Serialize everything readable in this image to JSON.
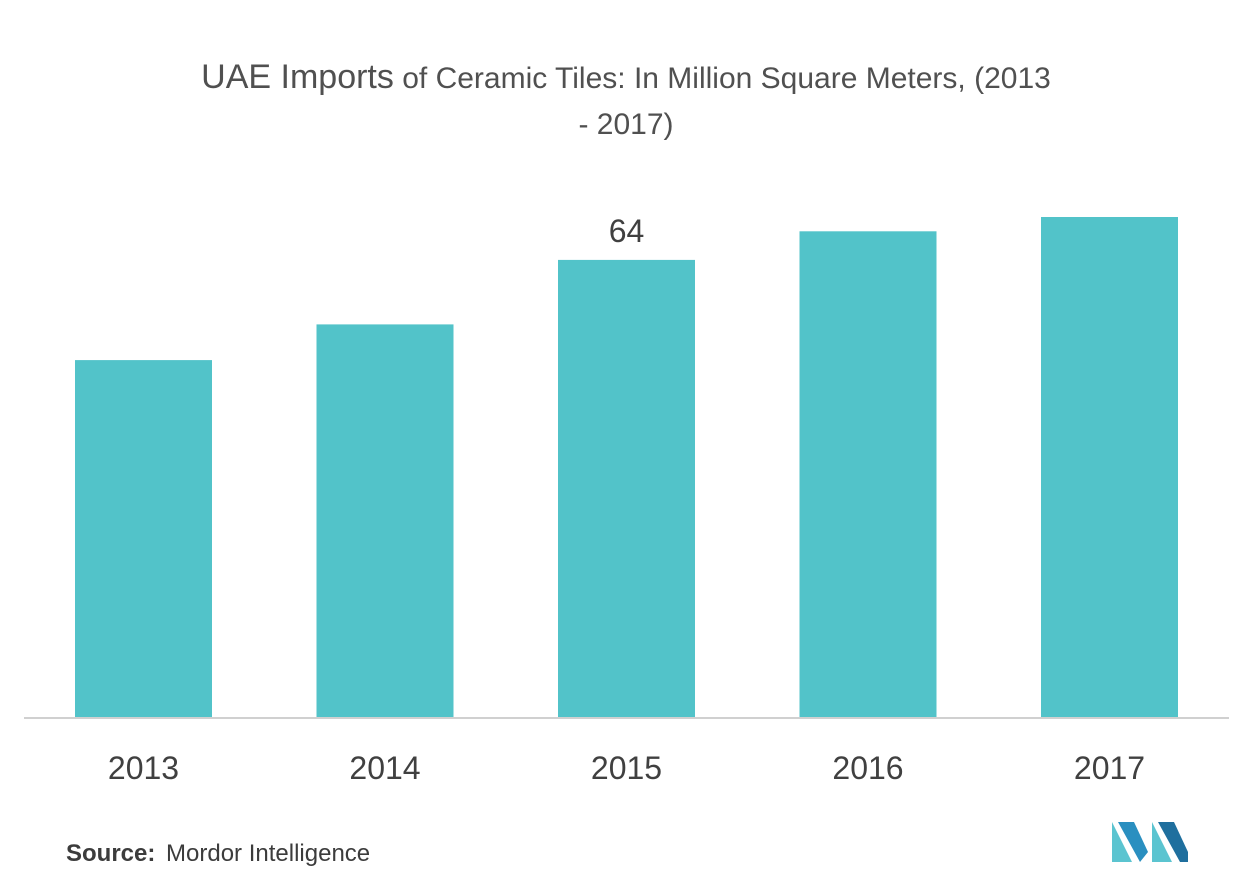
{
  "chart_data": {
    "type": "bar",
    "title_lead": "UAE Imports",
    "title_rest_line1": " of Ceramic Tiles: In Million Square Meters, (2013",
    "title_line2": "- 2017)",
    "title": "UAE Imports of Ceramic Tiles: In Million Square Meters, (2013 - 2017)",
    "categories": [
      "2013",
      "2014",
      "2015",
      "2016",
      "2017"
    ],
    "values": [
      50,
      55,
      64,
      68,
      70
    ],
    "data_labels": [
      "",
      "",
      "64",
      "",
      ""
    ],
    "xlabel": "",
    "ylabel": "",
    "ylim": [
      0,
      70
    ],
    "grid": false,
    "bar_color": "#52c3c9",
    "axis_color": "#d0d0d0"
  },
  "source": {
    "label": "Source:",
    "text": "Mordor Intelligence"
  },
  "logo": {
    "icon": "mordor-intelligence-logo",
    "colors": [
      "#5bc4d0",
      "#2a8fc0",
      "#1f6f9e"
    ]
  }
}
